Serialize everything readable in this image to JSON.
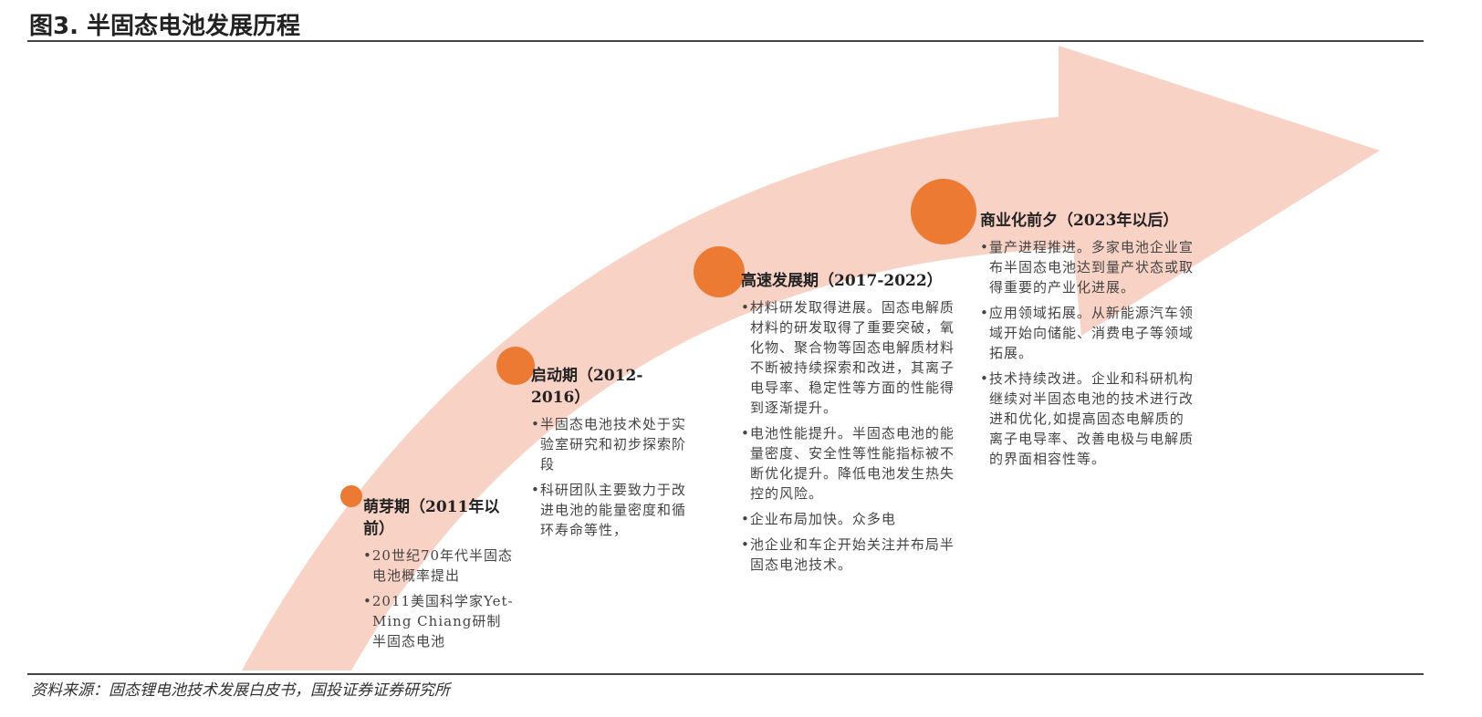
{
  "title": "图3. 半固态电池发展历程",
  "source": "资料来源：固态锂电池技术发展白皮书，国投证券证券研究所",
  "colors": {
    "arrow": "#f8d3c5",
    "milestone": "#ec7a32"
  },
  "stages": [
    {
      "heading": "萌芽期（2011年以前）",
      "bullets": [
        "20世纪70年代半固态电池概率提出",
        "2011美国科学家Yet-Ming Chiang研制半固态电池"
      ]
    },
    {
      "heading": "启动期（2012-2016）",
      "bullets": [
        "半固态电池技术处于实验室研究和初步探索阶段",
        "科研团队主要致力于改进电池的能量密度和循环寿命等性，"
      ]
    },
    {
      "heading": "高速发展期（2017-2022）",
      "bullets": [
        "材料研发取得进展。固态电解质材料的研发取得了重要突破，氧化物、聚合物等固态电解质材料不断被持续探索和改进，其离子电导率、稳定性等方面的性能得到逐渐提升。",
        "电池性能提升。半固态电池的能量密度、安全性等性能指标被不断优化提升。降低电池发生热失控的风险。",
        "企业布局加快。众多电",
        "池企业和车企开始关注并布局半固态电池技术。"
      ]
    },
    {
      "heading": "商业化前夕（2023年以后）",
      "bullets": [
        "量产进程推进。多家电池企业宣布半固态电池达到量产状态或取得重要的产业化进展。",
        "应用领域拓展。从新能源汽车领域开始向储能、消费电子等领域拓展。",
        "技术持续改进。企业和科研机构继续对半固态电池的技术进行改进和优化,如提高固态电解质的离子电导率、改善电极与电解质的界面相容性等。"
      ]
    }
  ]
}
